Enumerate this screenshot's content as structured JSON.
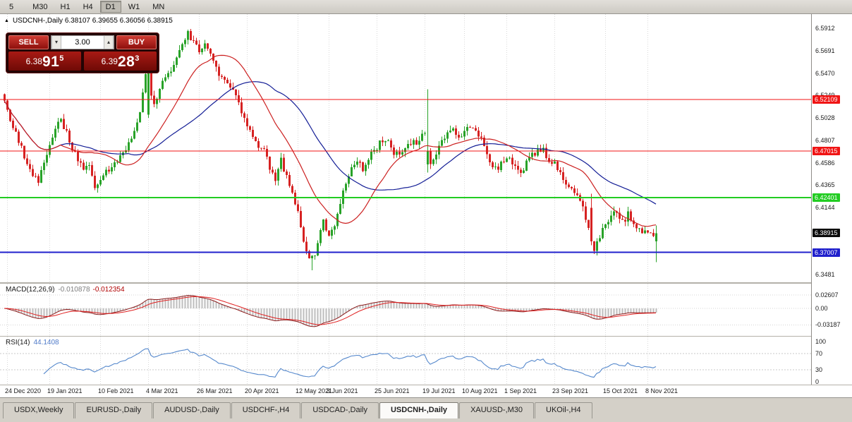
{
  "colors": {
    "bull": "#28a228",
    "bear": "#d62222",
    "ma_fast": "#cc2020",
    "ma_slow": "#141e96",
    "macd_hist": "#bdbdbd",
    "macd_signal": "#e02020",
    "macd_main": "#8b1a1a",
    "rsi": "#5588cc",
    "grid": "#d9d9d9"
  },
  "toolbar": {
    "timeframes": [
      {
        "label": "5"
      },
      {
        "label": "M30"
      },
      {
        "label": "H1"
      },
      {
        "label": "H4"
      },
      {
        "label": "D1",
        "active": true
      },
      {
        "label": "W1"
      },
      {
        "label": "MN"
      }
    ]
  },
  "main_chart": {
    "header_text": "USDCNH-,Daily 6.38107 6.39655 6.36056 6.38915",
    "trade_panel": {
      "sell_label": "SELL",
      "buy_label": "BUY",
      "volume": "3.00",
      "spin_down": "▾",
      "spin_up": "▴",
      "sell_price": {
        "prefix": "6.38",
        "big": "91",
        "sup": "5"
      },
      "buy_price": {
        "prefix": "6.39",
        "big": "28",
        "sup": "3"
      }
    },
    "ylim": [
      6.342,
      6.601
    ],
    "axis_ticks": [
      {
        "price": 6.5912,
        "label": "6.5912"
      },
      {
        "price": 6.5691,
        "label": "6.5691"
      },
      {
        "price": 6.547,
        "label": "6.5470"
      },
      {
        "price": 6.5249,
        "label": "6.5249"
      },
      {
        "price": 6.5028,
        "label": "6.5028"
      },
      {
        "price": 6.4807,
        "label": "6.4807"
      },
      {
        "price": 6.4586,
        "label": "6.4586"
      },
      {
        "price": 6.4365,
        "label": "6.4365"
      },
      {
        "price": 6.4144,
        "label": "6.4144"
      },
      {
        "price": 6.3481,
        "label": "6.3481"
      }
    ],
    "hlines": [
      {
        "price": 6.52109,
        "label": "6.52109",
        "color": "#f01414",
        "width": 1
      },
      {
        "price": 6.47015,
        "label": "6.47015",
        "color": "#f01414",
        "width": 1
      },
      {
        "price": 6.42401,
        "label": "6.42401",
        "color": "#22cc22",
        "width": 2
      },
      {
        "price": 6.37007,
        "label": "6.37007",
        "color": "#2020cc",
        "width": 2
      }
    ],
    "current_price": {
      "price": 6.38915,
      "label": "6.38915",
      "bg": "#0a0a0a"
    },
    "candle_count": 232,
    "ma_fast_period": 21,
    "ma_slow_period": 45,
    "price_path": [
      [
        0,
        6.526
      ],
      [
        2,
        6.512
      ],
      [
        4,
        6.493
      ],
      [
        7,
        6.472
      ],
      [
        10,
        6.452
      ],
      [
        13,
        6.44
      ],
      [
        15,
        6.458
      ],
      [
        17,
        6.478
      ],
      [
        19,
        6.494
      ],
      [
        21,
        6.5
      ],
      [
        23,
        6.488
      ],
      [
        26,
        6.468
      ],
      [
        29,
        6.452
      ],
      [
        31,
        6.458
      ],
      [
        33,
        6.434
      ],
      [
        35,
        6.44
      ],
      [
        38,
        6.452
      ],
      [
        41,
        6.46
      ],
      [
        44,
        6.472
      ],
      [
        47,
        6.488
      ],
      [
        49,
        6.508
      ],
      [
        51,
        6.545
      ],
      [
        52,
        6.528
      ],
      [
        54,
        6.516
      ],
      [
        56,
        6.53
      ],
      [
        58,
        6.542
      ],
      [
        60,
        6.552
      ],
      [
        62,
        6.56
      ],
      [
        64,
        6.572
      ],
      [
        66,
        6.586
      ],
      [
        68,
        6.578
      ],
      [
        70,
        6.568
      ],
      [
        72,
        6.578
      ],
      [
        74,
        6.565
      ],
      [
        76,
        6.55
      ],
      [
        79,
        6.543
      ],
      [
        82,
        6.528
      ],
      [
        84,
        6.518
      ],
      [
        86,
        6.502
      ],
      [
        88,
        6.49
      ],
      [
        90,
        6.48
      ],
      [
        93,
        6.47
      ],
      [
        95,
        6.452
      ],
      [
        97,
        6.444
      ],
      [
        99,
        6.46
      ],
      [
        101,
        6.445
      ],
      [
        103,
        6.428
      ],
      [
        105,
        6.408
      ],
      [
        107,
        6.38
      ],
      [
        109,
        6.362
      ],
      [
        111,
        6.365
      ],
      [
        113,
        6.39
      ],
      [
        114,
        6.402
      ],
      [
        116,
        6.384
      ],
      [
        118,
        6.396
      ],
      [
        120,
        6.42
      ],
      [
        122,
        6.44
      ],
      [
        124,
        6.456
      ],
      [
        126,
        6.462
      ],
      [
        128,
        6.452
      ],
      [
        130,
        6.462
      ],
      [
        132,
        6.47
      ],
      [
        134,
        6.478
      ],
      [
        136,
        6.482
      ],
      [
        138,
        6.472
      ],
      [
        140,
        6.468
      ],
      [
        142,
        6.472
      ],
      [
        144,
        6.476
      ],
      [
        146,
        6.478
      ],
      [
        148,
        6.48
      ],
      [
        150,
        6.49
      ],
      [
        152,
        6.458
      ],
      [
        154,
        6.466
      ],
      [
        156,
        6.478
      ],
      [
        158,
        6.486
      ],
      [
        160,
        6.49
      ],
      [
        162,
        6.486
      ],
      [
        164,
        6.49
      ],
      [
        166,
        6.494
      ],
      [
        168,
        6.49
      ],
      [
        170,
        6.484
      ],
      [
        172,
        6.464
      ],
      [
        174,
        6.452
      ],
      [
        176,
        6.454
      ],
      [
        178,
        6.458
      ],
      [
        180,
        6.462
      ],
      [
        182,
        6.452
      ],
      [
        184,
        6.448
      ],
      [
        186,
        6.458
      ],
      [
        188,
        6.466
      ],
      [
        190,
        6.472
      ],
      [
        192,
        6.47
      ],
      [
        194,
        6.462
      ],
      [
        196,
        6.456
      ],
      [
        198,
        6.448
      ],
      [
        200,
        6.44
      ],
      [
        202,
        6.436
      ],
      [
        204,
        6.428
      ],
      [
        206,
        6.414
      ],
      [
        208,
        6.396
      ],
      [
        209,
        6.38
      ],
      [
        210,
        6.374
      ],
      [
        212,
        6.386
      ],
      [
        214,
        6.396
      ],
      [
        216,
        6.404
      ],
      [
        218,
        6.41
      ],
      [
        220,
        6.4
      ],
      [
        222,
        6.408
      ],
      [
        224,
        6.398
      ],
      [
        226,
        6.394
      ],
      [
        228,
        6.39
      ],
      [
        230,
        6.386
      ],
      [
        231,
        6.389
      ]
    ],
    "candle_overrides": {
      "51": {
        "o": 6.506,
        "h": 6.553,
        "l": 6.503,
        "c": 6.548
      },
      "66": {
        "h": 6.5905
      },
      "109": {
        "l": 6.3525
      },
      "150": {
        "o": 6.457,
        "h": 6.531,
        "l": 6.449,
        "c": 6.47
      },
      "208": {
        "o": 6.414,
        "h": 6.428,
        "l": 6.377,
        "c": 6.381
      },
      "231": {
        "o": 6.38107,
        "h": 6.39655,
        "l": 6.36056,
        "c": 6.38915
      }
    },
    "dates": [
      {
        "label": "24 Dec 2020",
        "idx": 1
      },
      {
        "label": "19 Jan 2021",
        "idx": 16
      },
      {
        "label": "10 Feb 2021",
        "idx": 34
      },
      {
        "label": "4 Mar 2021",
        "idx": 51
      },
      {
        "label": "26 Mar 2021",
        "idx": 69
      },
      {
        "label": "20 Apr 2021",
        "idx": 86
      },
      {
        "label": "12 May 2021",
        "idx": 104
      },
      {
        "label": "3 Jun 2021",
        "idx": 115
      },
      {
        "label": "25 Jun 2021",
        "idx": 132
      },
      {
        "label": "19 Jul 2021",
        "idx": 149
      },
      {
        "label": "10 Aug 2021",
        "idx": 163
      },
      {
        "label": "1 Sep 2021",
        "idx": 178
      },
      {
        "label": "23 Sep 2021",
        "idx": 195
      },
      {
        "label": "15 Oct 2021",
        "idx": 213
      },
      {
        "label": "8 Nov 2021",
        "idx": 228
      }
    ]
  },
  "macd_panel": {
    "name": "MACD(12,26,9)",
    "value_main": "-0.010878",
    "value_signal": "-0.012354",
    "ticks": [
      {
        "v": 0.02607,
        "label": "0.02607"
      },
      {
        "v": 0,
        "label": "0.00"
      },
      {
        "v": -0.03187,
        "label": "-0.03187"
      }
    ]
  },
  "rsi_panel": {
    "name": "RSI(14)",
    "value": "44.1408",
    "ticks": [
      {
        "v": 100,
        "label": "100"
      },
      {
        "v": 70,
        "label": "70"
      },
      {
        "v": 30,
        "label": "30"
      },
      {
        "v": 0,
        "label": "0"
      }
    ],
    "levels": [
      70,
      30
    ]
  },
  "tabs": [
    {
      "label": "USDX,Weekly"
    },
    {
      "label": "EURUSD-,Daily"
    },
    {
      "label": "AUDUSD-,Daily"
    },
    {
      "label": "USDCHF-,H4"
    },
    {
      "label": "USDCAD-,Daily"
    },
    {
      "label": "USDCNH-,Daily",
      "active": true
    },
    {
      "label": "XAUUSD-,M30"
    },
    {
      "label": "UKOil-,H4"
    }
  ]
}
